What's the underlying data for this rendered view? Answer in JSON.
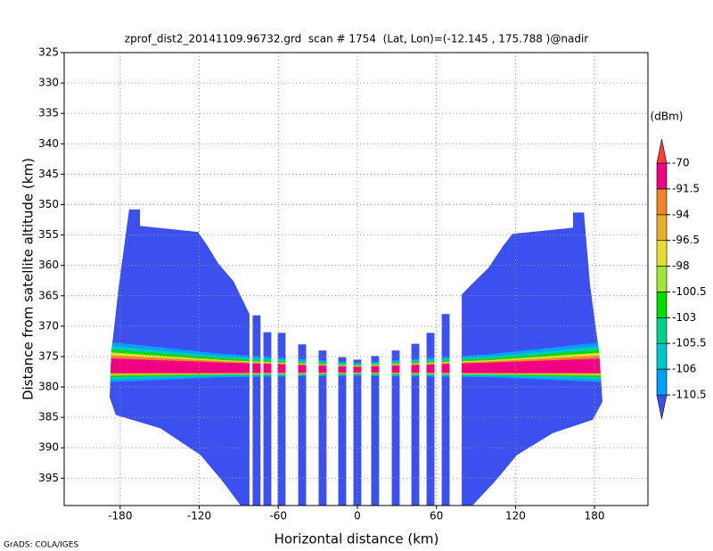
{
  "chart_data": {
    "type": "field",
    "title": "zprof_dist2_20141109.96732.grd  scan # 1754  (Lat, Lon)=(-12.145 , 175.788 )@nadir",
    "x_label": "Horizontal distance (km)",
    "y_label": "Distance from satellite altitude (km)",
    "footer": "GrADS: COLA/IGES",
    "colorbar_unit": "(dBm)",
    "xlim": [
      -222.5,
      220.5
    ],
    "xticks": [
      -180,
      -120,
      -60,
      0,
      60,
      120,
      180
    ],
    "ylim": [
      399.5,
      325
    ],
    "yticks": [
      325,
      330,
      335,
      340,
      345,
      350,
      355,
      360,
      365,
      370,
      375,
      380,
      385,
      390,
      395
    ],
    "grid": true,
    "clevs": [
      -110.5,
      -106,
      -105.5,
      -103,
      -100.5,
      -98,
      -96.5,
      -94,
      -91.5,
      -70
    ],
    "ccolors": [
      "#3c50f0",
      "#00a0ff",
      "#00c8c8",
      "#00d28c",
      "#00dc00",
      "#a0e632",
      "#e6dc32",
      "#e6af2d",
      "#f08228",
      "#f00082",
      "#fa3c3c"
    ],
    "echo_regions": [
      {
        "color": "#3c50f0",
        "x": [
          -173.2,
          -165,
          -165,
          -121,
          -114,
          -105.5,
          -94,
          -81.9,
          -81.9,
          -88.6,
          -102,
          -119,
          -149.5,
          -183.4,
          -188,
          -186.7,
          -181
        ],
        "y": [
          350.8,
          350.8,
          353.5,
          354.5,
          356.7,
          359.7,
          362.6,
          368,
          399.5,
          399.5,
          395.6,
          391.2,
          386.8,
          384.6,
          381.7,
          374.3,
          363.3
        ]
      },
      {
        "color": "#3c50f0",
        "x": [
          171.9,
          163.7,
          163.7,
          117.7,
          110.9,
          99.5,
          87.3,
          79.2,
          79.2,
          87.3,
          104.2,
          121.1,
          148.2,
          178.6,
          186,
          183.4,
          176.6
        ],
        "y": [
          351.3,
          351.3,
          353.8,
          354.8,
          356.7,
          360.4,
          363,
          364.8,
          399.5,
          399.5,
          395.6,
          391.2,
          387.6,
          385.4,
          382.4,
          374.3,
          363.3
        ]
      },
      {
        "color": "#3c50f0",
        "x": [
          -79.5,
          -73.5,
          -73.5,
          -79.5
        ],
        "y": [
          368.2,
          368.2,
          399.5,
          399.5
        ]
      },
      {
        "color": "#3c50f0",
        "x": [
          -71.3,
          -65.3,
          -65.3,
          -71.3
        ],
        "y": [
          371,
          371,
          399.5,
          399.5
        ]
      },
      {
        "color": "#3c50f0",
        "x": [
          -60.5,
          -54.5,
          -54.5,
          -60.5
        ],
        "y": [
          371.1,
          371.1,
          399.5,
          399.5
        ]
      },
      {
        "color": "#3c50f0",
        "x": [
          -44.9,
          -38.9,
          -38.9,
          -44.9
        ],
        "y": [
          373,
          373,
          399.5,
          399.5
        ]
      },
      {
        "color": "#3c50f0",
        "x": [
          -29.4,
          -23.4,
          -23.4,
          -29.4
        ],
        "y": [
          374,
          374,
          399.5,
          399.5
        ]
      },
      {
        "color": "#3c50f0",
        "x": [
          -14.5,
          -8.5,
          -8.5,
          -14.5
        ],
        "y": [
          375.1,
          375.1,
          399.5,
          399.5
        ]
      },
      {
        "color": "#3c50f0",
        "x": [
          -3,
          3,
          3,
          -3
        ],
        "y": [
          375.5,
          375.5,
          399.5,
          399.5
        ]
      },
      {
        "color": "#3c50f0",
        "x": [
          10.5,
          16.5,
          16.5,
          10.5
        ],
        "y": [
          374.9,
          374.9,
          399.5,
          399.5
        ]
      },
      {
        "color": "#3c50f0",
        "x": [
          26.1,
          32.1,
          32.1,
          26.1
        ],
        "y": [
          374,
          374,
          399.5,
          399.5
        ]
      },
      {
        "color": "#3c50f0",
        "x": [
          41,
          47,
          47,
          41
        ],
        "y": [
          372.9,
          372.9,
          399.5,
          399.5
        ]
      },
      {
        "color": "#3c50f0",
        "x": [
          52.5,
          58.5,
          58.5,
          52.5
        ],
        "y": [
          371.1,
          371.1,
          399.5,
          399.5
        ]
      },
      {
        "color": "#3c50f0",
        "x": [
          64,
          70,
          70,
          64
        ],
        "y": [
          368,
          368,
          399.5,
          399.5
        ]
      }
    ],
    "band_regions": [
      {
        "color": "#00a0ff",
        "x": [
          -188,
          -100,
          0,
          100,
          188,
          188,
          100,
          0,
          -100,
          -188
        ],
        "y": [
          372.6,
          374.6,
          376,
          374.6,
          372.6,
          379.2,
          378.4,
          378.2,
          378.4,
          379.2
        ]
      },
      {
        "color": "#00c8c8",
        "x": [
          -188,
          -100,
          0,
          100,
          188,
          188,
          100,
          0,
          -100,
          -188
        ],
        "y": [
          373.2,
          375,
          376.2,
          375,
          373.2,
          378.8,
          378.2,
          378,
          378.2,
          378.8
        ]
      },
      {
        "color": "#00dc00",
        "x": [
          -188,
          -100,
          0,
          100,
          188,
          188,
          100,
          0,
          -100,
          -188
        ],
        "y": [
          373.8,
          375.3,
          376.4,
          375.3,
          373.8,
          378.4,
          378,
          377.9,
          378,
          378.4
        ]
      },
      {
        "color": "#e6dc32",
        "x": [
          -188,
          -100,
          0,
          100,
          188,
          188,
          100,
          0,
          -100,
          -188
        ],
        "y": [
          374.3,
          375.6,
          376.5,
          375.6,
          374.3,
          378.1,
          377.9,
          377.8,
          377.9,
          378.1
        ]
      },
      {
        "color": "#f08228",
        "x": [
          -188,
          -100,
          0,
          100,
          188,
          188,
          100,
          0,
          -100,
          -188
        ],
        "y": [
          374.8,
          375.8,
          376.6,
          375.8,
          374.8,
          377.9,
          377.8,
          377.7,
          377.8,
          377.9
        ]
      },
      {
        "color": "#f00082",
        "x": [
          -188,
          -100,
          0,
          100,
          188,
          188,
          100,
          0,
          -100,
          -188
        ],
        "y": [
          375.3,
          376,
          376.7,
          376,
          375.3,
          377.7,
          377.7,
          377.6,
          377.7,
          377.7
        ]
      }
    ]
  }
}
